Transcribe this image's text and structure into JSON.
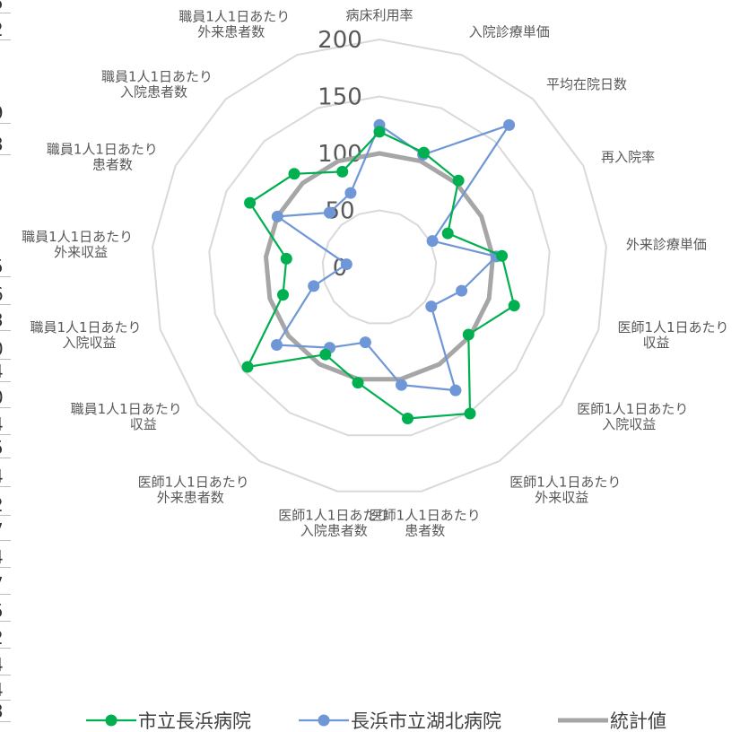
{
  "chart_data": {
    "type": "radar",
    "title": "",
    "categories": [
      "病床利用率",
      "入院診療単価",
      "平均在院日数",
      "再入院率",
      "外来診療単価",
      "医師1人1日あたり\n収益",
      "医師1人1日あたり\n入院収益",
      "医師1人1日あたり\n外来収益",
      "医師1人1日あたり\n患者数",
      "医師1人1日あたり\n入院患者数",
      "医師1人1日あたり\n外来患者数",
      "職員1人1日あたり\n収益",
      "職員1人1日あたり\n入院収益",
      "職員1人1日あたり\n外来収益",
      "職員1人1日あたり\n患者数",
      "職員1人1日あたり\n入院患者数",
      "職員1人1日あたり\n外来患者数"
    ],
    "rlim": [
      0,
      200
    ],
    "ticks": [
      0,
      50,
      100,
      150,
      200
    ],
    "grid": true,
    "legend_position": "bottom",
    "series": [
      {
        "name": "市立長浜病院",
        "color": "#00b050",
        "marker": "circle",
        "values": [
          119,
          108,
          103,
          67,
          108,
          123,
          98,
          151,
          135,
          103,
          90,
          145,
          88,
          82,
          127,
          111,
          90
        ]
      },
      {
        "name": "長浜市立湖北病院",
        "color": "#6f96d6",
        "marker": "circle",
        "values": [
          125,
          106,
          169,
          52,
          103,
          75,
          57,
          127,
          105,
          67,
          83,
          113,
          60,
          29,
          100,
          65,
          70
        ]
      },
      {
        "name": "統計値",
        "color": "#a6a6a6",
        "marker": "none",
        "values": [
          100,
          100,
          100,
          100,
          100,
          100,
          100,
          100,
          100,
          100,
          100,
          100,
          100,
          100,
          100,
          100,
          100
        ]
      }
    ]
  },
  "edge_fragments": [
    "5",
    "2",
    "9",
    "3",
    "5",
    "6",
    "3",
    "0",
    "4",
    "0",
    "4",
    "5",
    "4",
    "2",
    "7",
    "4",
    "7",
    "5",
    "2",
    "4",
    "4",
    "3"
  ]
}
